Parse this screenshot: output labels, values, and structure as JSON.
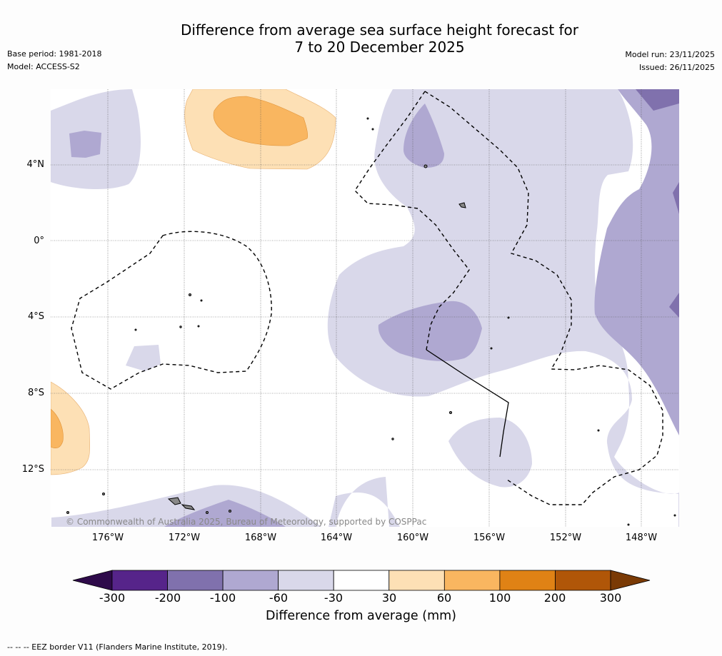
{
  "title_line1": "Difference from average sea surface height forecast for",
  "title_line2": "7 to 20 December 2025",
  "base_period": "Base period: 1981-2018",
  "model": "Model: ACCESS-S2",
  "model_run": "Model run: 23/11/2025",
  "issued": "Issued: 26/11/2025",
  "copyright": "© Commonwealth of Australia 2025, Bureau of Meteorology, supported by COSPPac",
  "footnote": "--  --  -- EEZ border V11 (Flanders Marine Institute, 2019).",
  "lat_labels": [
    "4°N",
    "0°",
    "4°S",
    "8°S",
    "12°S"
  ],
  "lon_labels": [
    "176°W",
    "172°W",
    "168°W",
    "164°W",
    "160°W",
    "156°W",
    "152°W",
    "148°W"
  ],
  "colorbar": {
    "title": "Difference from average (mm)",
    "ticks": [
      "-300",
      "-200",
      "-100",
      "-60",
      "-30",
      "30",
      "60",
      "100",
      "200",
      "300"
    ],
    "colors": [
      "#2e0a4a",
      "#56248a",
      "#8071ad",
      "#afa8d1",
      "#d9d8ea",
      "#ffffff",
      "#fde0b5",
      "#f9b660",
      "#e08215",
      "#b05608",
      "#7a3a05"
    ]
  }
}
